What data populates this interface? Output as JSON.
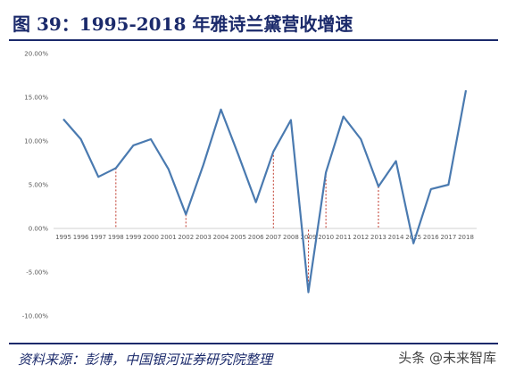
{
  "header": {
    "title": "图 39：1995-2018 年雅诗兰黛营收增速"
  },
  "footer": {
    "source": "资料来源：彭博，中国银河证券研究院整理",
    "watermark": "头条 @未来智库"
  },
  "colors": {
    "line": "#4a7ab0",
    "marker_line": "#c0392b",
    "axis": "#d0d0d0",
    "title": "#1b2a6b"
  },
  "chart_data": {
    "type": "line",
    "title": "",
    "xlabel": "",
    "ylabel": "",
    "x": [
      "1995",
      "1996",
      "1997",
      "1998",
      "1999",
      "2000",
      "2001",
      "2002",
      "2003",
      "2004",
      "2005",
      "2006",
      "2007",
      "2008",
      "2009",
      "2010",
      "2011",
      "2012",
      "2013",
      "2014",
      "2015",
      "2016",
      "2017",
      "2018"
    ],
    "series": [
      {
        "values": [
          12.5,
          10.2,
          5.9,
          6.9,
          9.5,
          10.2,
          6.8,
          1.6,
          7.3,
          13.6,
          8.4,
          3.0,
          8.8,
          12.4,
          -7.3,
          6.4,
          12.8,
          10.2,
          4.8,
          7.7,
          -1.7,
          4.5,
          5.0,
          15.8
        ]
      }
    ],
    "ylim": [
      -10,
      20
    ],
    "yticks": [
      "-10.00%",
      "-5.00%",
      "0.00%",
      "5.00%",
      "10.00%",
      "15.00%",
      "20.00%"
    ],
    "ytick_values": [
      -10,
      -5,
      0,
      5,
      10,
      15,
      20
    ],
    "grid": false,
    "legend": "none",
    "marker_years": [
      "1998",
      "2002",
      "2007",
      "2009",
      "2010",
      "2013"
    ]
  }
}
